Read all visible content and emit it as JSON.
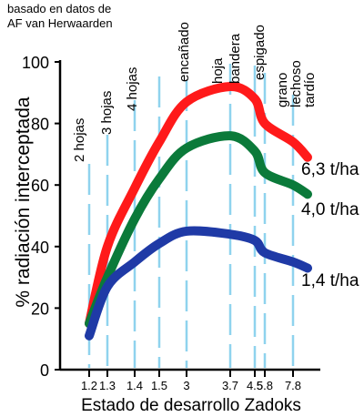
{
  "credit": {
    "line1": "basado en datos de",
    "line2": "AF van Herwaarden"
  },
  "chart_data": {
    "type": "line",
    "title": "",
    "xlabel": "Estado de desarrollo Zadoks",
    "ylabel": "% radiación interceptada",
    "ylim": [
      0,
      100
    ],
    "yticks": [
      0,
      20,
      40,
      60,
      80,
      100
    ],
    "x_ticks": [
      "1.2",
      "1.3",
      "1.4",
      "1.5",
      "3",
      "3.7",
      "4.5",
      "5.8",
      "7.8"
    ],
    "stage_markers": [
      {
        "label": "2 hojas",
        "tick": "1.2"
      },
      {
        "label": "3 hojas",
        "tick": "1.3"
      },
      {
        "label": "4 hojas",
        "tick": "1.4"
      },
      {
        "label": "encañado",
        "tick": "3"
      },
      {
        "label": "hoja bandera",
        "tick": "3.7"
      },
      {
        "label": "espigado",
        "tick": "4.5"
      },
      {
        "label": "grano lechoso tardío",
        "tick": "7.8"
      }
    ],
    "series": [
      {
        "name": "6,3 t/ha",
        "color": "#ff1a1a",
        "points": [
          [
            "1.2",
            15
          ],
          [
            "1.3",
            40
          ],
          [
            "1.4",
            59
          ],
          [
            "1.5",
            74
          ],
          [
            "3",
            87
          ],
          [
            "3.7",
            92
          ],
          [
            "4.5",
            88
          ],
          [
            "5.8",
            80
          ],
          [
            "7.8",
            74
          ],
          [
            "end",
            69
          ]
        ]
      },
      {
        "name": "4,0 t/ha",
        "color": "#0b7a3a",
        "points": [
          [
            "1.2",
            15
          ],
          [
            "1.3",
            30
          ],
          [
            "1.4",
            49
          ],
          [
            "1.5",
            62
          ],
          [
            "3",
            72
          ],
          [
            "3.7",
            76
          ],
          [
            "4.5",
            71
          ],
          [
            "5.8",
            64
          ],
          [
            "7.8",
            60
          ],
          [
            "end",
            57
          ]
        ]
      },
      {
        "name": "1,4 t/ha",
        "color": "#1f3aa6",
        "points": [
          [
            "1.2",
            11
          ],
          [
            "1.3",
            27
          ],
          [
            "1.4",
            35
          ],
          [
            "1.5",
            41
          ],
          [
            "3",
            45
          ],
          [
            "3.7",
            44
          ],
          [
            "4.5",
            42
          ],
          [
            "5.8",
            38
          ],
          [
            "7.8",
            35
          ],
          [
            "end",
            33
          ]
        ]
      }
    ]
  }
}
